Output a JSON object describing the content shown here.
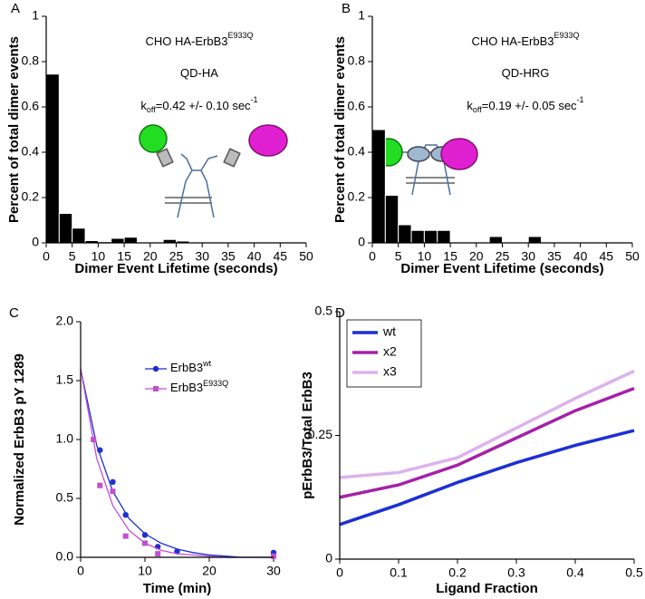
{
  "chart_data": [
    {
      "type": "histogram",
      "label": "A",
      "ylabel": "Percent of total dimer events",
      "xlabel": "Dimer Event Lifetime (seconds)",
      "bins": [
        0,
        2.5,
        5,
        7.5,
        10,
        12.5,
        15,
        17.5,
        20,
        22.5,
        25,
        27.5,
        30,
        32.5,
        35,
        37.5,
        40,
        42.5,
        45,
        47.5,
        50
      ],
      "values": [
        0.745,
        0.13,
        0.065,
        0.01,
        0.005,
        0.02,
        0.025,
        0,
        0,
        0.015,
        0.008,
        0,
        0,
        0,
        0,
        0,
        0,
        0,
        0,
        0
      ],
      "color": "#000000",
      "xlim": [
        0,
        50
      ],
      "ylim": [
        0,
        1
      ],
      "xticks": [
        0,
        5,
        10,
        15,
        20,
        25,
        30,
        35,
        40,
        45,
        50
      ],
      "yticks": [
        0,
        0.2,
        0.4,
        0.6,
        0.8,
        1
      ],
      "annotations": [
        {
          "text": "CHO HA-ErbB3",
          "sup": "E933Q"
        },
        {
          "text": "QD-HA"
        },
        {
          "text": "k",
          "sub": "off",
          "text2": "=0.42 +/- 0.10 sec",
          "sup": "-1"
        }
      ]
    },
    {
      "type": "histogram",
      "label": "B",
      "ylabel": "Percent of total dimer events",
      "xlabel": "Dimer Event Lifetime (seconds)",
      "bins": [
        0,
        2.5,
        5,
        7.5,
        10,
        12.5,
        15,
        17.5,
        20,
        22.5,
        25,
        27.5,
        30,
        32.5,
        35,
        37.5,
        40,
        42.5,
        45,
        47.5,
        50
      ],
      "values": [
        0.5,
        0.21,
        0.08,
        0.055,
        0.055,
        0.055,
        0,
        0,
        0,
        0.028,
        0,
        0,
        0.028,
        0,
        0,
        0,
        0,
        0,
        0,
        0
      ],
      "color": "#000000",
      "xlim": [
        0,
        50
      ],
      "ylim": [
        0,
        1
      ],
      "xticks": [
        0,
        5,
        10,
        15,
        20,
        25,
        30,
        35,
        40,
        45,
        50
      ],
      "yticks": [
        0,
        0.2,
        0.4,
        0.6,
        0.8,
        1
      ],
      "annotations": [
        {
          "text": "CHO HA-ErbB3",
          "sup": "E933Q"
        },
        {
          "text": "QD-HRG"
        },
        {
          "text": "k",
          "sub": "off",
          "text2": "=0.19 +/- 0.05 sec",
          "sup": "-1"
        }
      ]
    },
    {
      "type": "scatter",
      "label": "C",
      "ylabel": "Normalized ErbB3 pY 1289",
      "xlabel": "Time (min)",
      "xlim": [
        0,
        30
      ],
      "ylim": [
        0,
        2
      ],
      "xticks": [
        0,
        10,
        20,
        30
      ],
      "yticks": [
        {
          "value": 0,
          "label": "0.0"
        },
        0.5,
        {
          "value": 1,
          "label": "1.0"
        },
        1.5,
        {
          "value": 2,
          "label": "2.0"
        }
      ],
      "series": [
        {
          "name": "ErbB3",
          "sup": "wt",
          "color": "#1f2fd0",
          "marker": "circle",
          "x": [
            3,
            5,
            7,
            10,
            12,
            15,
            30
          ],
          "values": [
            0.91,
            0.64,
            0.36,
            0.19,
            0.09,
            0.05,
            0.04
          ],
          "fit": {
            "x": [
              0,
              2.5,
              5,
              7.5,
              10,
              12.5,
              15,
              17.5,
              20,
              22.5,
              25,
              27.5,
              30
            ],
            "values": [
              1.6,
              0.95,
              0.56,
              0.33,
              0.2,
              0.12,
              0.07,
              0.04,
              0.02,
              0.01,
              0,
              0,
              0
            ]
          }
        },
        {
          "name": "ErbB3",
          "sup": "E933Q",
          "color": "#c050d0",
          "marker": "square",
          "x": [
            2,
            3,
            5,
            7,
            10,
            12,
            30
          ],
          "values": [
            1.0,
            0.61,
            0.56,
            0.18,
            0.12,
            0.03,
            0.01
          ],
          "fit": {
            "x": [
              0,
              2.5,
              5,
              7.5,
              10,
              12.5,
              15,
              17.5,
              20,
              22.5,
              25,
              27.5,
              30
            ],
            "values": [
              1.6,
              0.84,
              0.44,
              0.23,
              0.12,
              0.06,
              0.03,
              0.02,
              0.01,
              0,
              0,
              0,
              0
            ]
          }
        }
      ]
    },
    {
      "type": "line",
      "label": "D",
      "ylabel": "pErbB3/Total ErbB3",
      "xlabel": "Ligand Fraction",
      "xlim": [
        0,
        0.5
      ],
      "ylim": [
        0,
        0.5
      ],
      "xticks": [
        0,
        0.1,
        0.2,
        0.3,
        0.4,
        0.5
      ],
      "yticks": [
        0,
        0.25,
        0.5
      ],
      "x": [
        0,
        0.1,
        0.2,
        0.3,
        0.4,
        0.5
      ],
      "series": [
        {
          "name": "wt",
          "color": "#1c2fd6",
          "values": [
            0.07,
            0.11,
            0.155,
            0.195,
            0.23,
            0.26
          ]
        },
        {
          "name": "x2",
          "color": "#a521a8",
          "values": [
            0.125,
            0.15,
            0.19,
            0.245,
            0.3,
            0.345
          ]
        },
        {
          "name": "x3",
          "color": "#dcb2ec",
          "values": [
            0.165,
            0.175,
            0.205,
            0.265,
            0.325,
            0.38
          ]
        }
      ]
    }
  ]
}
